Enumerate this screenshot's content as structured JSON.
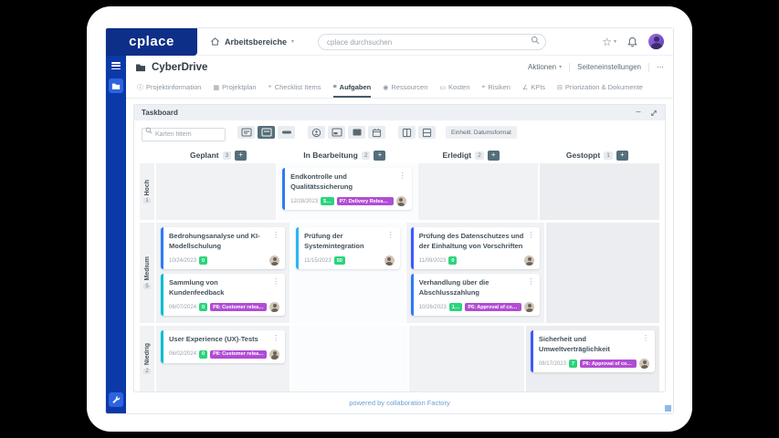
{
  "topnav": {
    "logo": "cplace",
    "nav_label": "Arbeitsbereiche",
    "search_placeholder": "cplace durchsuchen"
  },
  "page": {
    "title": "CyberDrive",
    "actions_label": "Aktionen",
    "settings_label": "Seiteneinstellungen",
    "more_label": "⋯"
  },
  "tabs": [
    {
      "label": "Projektinformation",
      "icon": "info-icon",
      "glyph": "ⓘ",
      "active": false
    },
    {
      "label": "Projektplan",
      "icon": "plan-icon",
      "glyph": "▦",
      "active": false
    },
    {
      "label": "Checklist Items",
      "icon": "plus-icon",
      "glyph": "+",
      "active": false
    },
    {
      "label": "Aufgaben",
      "icon": "list-icon",
      "glyph": "≡",
      "active": true
    },
    {
      "label": "Ressourcen",
      "icon": "people-icon",
      "glyph": "◉",
      "active": false
    },
    {
      "label": "Kosten",
      "icon": "money-icon",
      "glyph": "▭",
      "active": false
    },
    {
      "label": "Risiken",
      "icon": "pin-icon",
      "glyph": "⌖",
      "active": false
    },
    {
      "label": "KPIs",
      "icon": "chart-icon",
      "glyph": "∠",
      "active": false
    },
    {
      "label": "Priorization & Dokumente",
      "icon": "documents-icon",
      "glyph": "⊟",
      "active": false
    }
  ],
  "taskboard": {
    "title": "Taskboard",
    "filter_placeholder": "Karten filtern",
    "unified_date_label": "Einheitl. Datumsformat",
    "columns": [
      {
        "name": "Geplant",
        "count": "3"
      },
      {
        "name": "In Bearbeitung",
        "count": "2"
      },
      {
        "name": "Erledigt",
        "count": "2"
      },
      {
        "name": "Gestoppt",
        "count": "1"
      }
    ],
    "lanes": [
      {
        "name": "Hoch",
        "count": "1",
        "cells": [
          [],
          [
            0
          ],
          [],
          []
        ]
      },
      {
        "name": "Medium",
        "count": "5",
        "cells": [
          [
            1,
            2
          ],
          [
            3
          ],
          [
            4,
            5
          ],
          []
        ]
      },
      {
        "name": "Niedrig",
        "count": "2",
        "cells": [
          [
            6
          ],
          [],
          [],
          [
            7
          ]
        ]
      }
    ],
    "cards": [
      {
        "title": "Endkontrolle und Qualitätssicherung",
        "date": "12/28/2023",
        "points": "5…",
        "release": "P7: Delivery Release …",
        "accent": "#2e7bf6"
      },
      {
        "title": "Bedrohungsanalyse und KI-Modellschulung",
        "date": "10/24/2023",
        "points": "0",
        "release": "",
        "accent": "#2e7bf6"
      },
      {
        "title": "Sammlung von Kundenfeedback",
        "date": "06/07/2024",
        "points": "0",
        "release": "P8: Customer release",
        "accent": "#00bcd4"
      },
      {
        "title": "Prüfung der Systemintegration",
        "date": "11/15/2023",
        "points": "50",
        "release": "",
        "accent": "#29b6f6"
      },
      {
        "title": "Prüfung des Datenschutzes und der Einhaltung von Vorschriften",
        "date": "11/09/2023",
        "points": "0",
        "release": "",
        "accent": "#3d5afe"
      },
      {
        "title": "Verhandlung über die Abschlusszahlung",
        "date": "10/26/2023",
        "points": "1…",
        "release": "P6: Approval of cons…",
        "accent": "#2e7bf6"
      },
      {
        "title": "User Experience (UX)-Tests",
        "date": "06/02/2024",
        "points": "0",
        "release": "P8: Customer release",
        "accent": "#00bcd4"
      },
      {
        "title": "Sicherheit und Umweltverträglichkeit",
        "date": "08/17/2023",
        "points": "7",
        "release": "P6: Approval of const…",
        "accent": "#3d5afe"
      }
    ],
    "badge_colors": {
      "green": "#2bd47d",
      "purple": "#b14cd4"
    }
  },
  "footer": {
    "text": "powered by collaboration Factory"
  }
}
